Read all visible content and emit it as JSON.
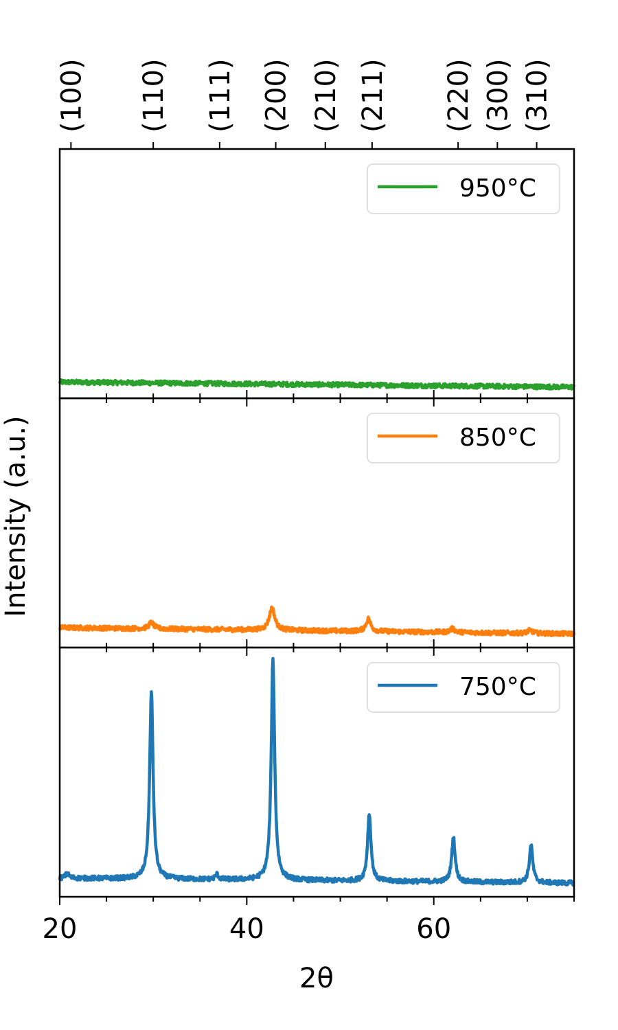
{
  "chart_data": {
    "type": "line",
    "xlabel": "2θ",
    "ylabel": "Intensity (a.u.)",
    "xlim": [
      20,
      75
    ],
    "x_ticks": [
      20,
      40,
      60
    ],
    "x_minor_ticks": [
      25,
      30,
      35,
      45,
      50,
      55,
      65,
      70,
      75
    ],
    "top_axis_labels": [
      {
        "x": 21.2,
        "label": "(100)"
      },
      {
        "x": 30.0,
        "label": "(110)"
      },
      {
        "x": 37.1,
        "label": "(111)"
      },
      {
        "x": 43.1,
        "label": "(200)"
      },
      {
        "x": 48.4,
        "label": "(210)"
      },
      {
        "x": 53.4,
        "label": "(211)"
      },
      {
        "x": 62.6,
        "label": "(220)"
      },
      {
        "x": 66.8,
        "label": "(300)"
      },
      {
        "x": 71.0,
        "label": "(310)"
      }
    ],
    "panels": [
      {
        "name": "950°C",
        "color": "#2ca02c",
        "ylim": [
          0,
          1
        ],
        "baseline": [
          [
            20,
            0.065
          ],
          [
            75,
            0.045
          ]
        ],
        "peaks": []
      },
      {
        "name": "850°C",
        "color": "#ff7f0e",
        "ylim": [
          0,
          1
        ],
        "baseline": [
          [
            20,
            0.08
          ],
          [
            75,
            0.055
          ]
        ],
        "peaks": [
          {
            "x": 29.8,
            "height": 0.025,
            "width": 0.3
          },
          {
            "x": 42.7,
            "height": 0.09,
            "width": 0.35
          },
          {
            "x": 53.0,
            "height": 0.05,
            "width": 0.3
          },
          {
            "x": 62.0,
            "height": 0.015,
            "width": 0.3
          },
          {
            "x": 70.3,
            "height": 0.012,
            "width": 0.3
          }
        ]
      },
      {
        "name": "750°C",
        "color": "#1f77b4",
        "ylim": [
          0,
          1
        ],
        "baseline": [
          [
            20,
            0.075
          ],
          [
            75,
            0.055
          ]
        ],
        "peaks": [
          {
            "x": 20.8,
            "height": 0.02,
            "width": 0.2
          },
          {
            "x": 29.8,
            "height": 0.75,
            "width": 0.22
          },
          {
            "x": 36.8,
            "height": 0.02,
            "width": 0.2
          },
          {
            "x": 42.8,
            "height": 0.885,
            "width": 0.22
          },
          {
            "x": 53.1,
            "height": 0.27,
            "width": 0.22
          },
          {
            "x": 62.1,
            "height": 0.18,
            "width": 0.22
          },
          {
            "x": 70.4,
            "height": 0.15,
            "width": 0.22
          }
        ]
      }
    ]
  }
}
